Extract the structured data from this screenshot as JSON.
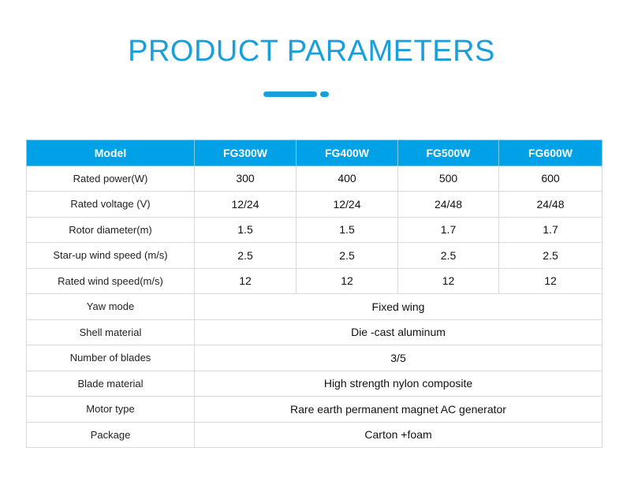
{
  "title": "PRODUCT PARAMETERS",
  "accent_color": "#1a9fdb",
  "header_color": "#00a1e6",
  "table": {
    "header": [
      "Model",
      "FG300W",
      "FG400W",
      "FG500W",
      "FG600W"
    ],
    "rows": [
      {
        "label": "Rated power(W)",
        "values": [
          "300",
          "400",
          "500",
          "600"
        ]
      },
      {
        "label": "Rated voltage (V)",
        "values": [
          "12/24",
          "12/24",
          "24/48",
          "24/48"
        ]
      },
      {
        "label": "Rotor diameter(m)",
        "values": [
          "1.5",
          "1.5",
          "1.7",
          "1.7"
        ]
      },
      {
        "label": "Star-up wind speed (m/s)",
        "values": [
          "2.5",
          "2.5",
          "2.5",
          "2.5"
        ]
      },
      {
        "label": "Rated wind speed(m/s)",
        "values": [
          "12",
          "12",
          "12",
          "12"
        ]
      }
    ],
    "merged_rows": [
      {
        "label": "Yaw mode",
        "value": "Fixed wing"
      },
      {
        "label": "Shell material",
        "value": "Die -cast aluminum"
      },
      {
        "label": "Number of blades",
        "value": "3/5"
      },
      {
        "label": "Blade material",
        "value": "High strength nylon composite"
      },
      {
        "label": "Motor type",
        "value": "Rare earth permanent magnet AC generator"
      },
      {
        "label": "Package",
        "value": "Carton +foam"
      }
    ]
  }
}
